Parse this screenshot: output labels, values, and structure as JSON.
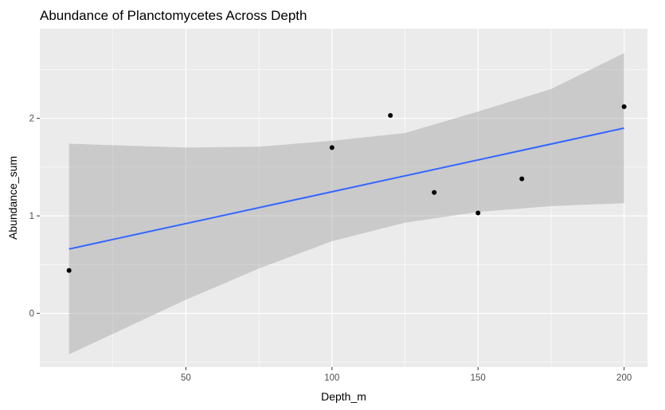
{
  "chart_data": {
    "type": "scatter",
    "title": "Abundance of Planctomycetes Across Depth",
    "xlabel": "Depth_m",
    "ylabel": "Abundance_sum",
    "xlim": [
      0,
      208
    ],
    "ylim": [
      -0.55,
      2.92
    ],
    "x_ticks": [
      50,
      100,
      150,
      200
    ],
    "x_minor_ticks": [
      25,
      75,
      125,
      175
    ],
    "y_ticks": [
      0,
      1,
      2
    ],
    "y_minor_ticks": [
      -0.5,
      0.5,
      1.5,
      2.5
    ],
    "points": [
      {
        "x": 10,
        "y": 0.44
      },
      {
        "x": 100,
        "y": 1.7
      },
      {
        "x": 120,
        "y": 2.03
      },
      {
        "x": 135,
        "y": 1.24
      },
      {
        "x": 150,
        "y": 1.03
      },
      {
        "x": 165,
        "y": 1.38
      },
      {
        "x": 200,
        "y": 2.12
      }
    ],
    "trend_line": {
      "method": "linear",
      "x": [
        10,
        200
      ],
      "y": [
        0.66,
        1.9
      ],
      "color": "#3366ff"
    },
    "confidence_band": {
      "x": [
        10,
        50,
        75,
        100,
        125,
        150,
        175,
        200
      ],
      "lower": [
        -0.42,
        0.14,
        0.46,
        0.74,
        0.93,
        1.04,
        1.1,
        1.13
      ],
      "upper": [
        1.74,
        1.7,
        1.71,
        1.77,
        1.85,
        2.07,
        2.3,
        2.67
      ],
      "color": "#999999"
    },
    "grid": true,
    "panel_background": "#ebebeb",
    "point_color": "#000000"
  }
}
